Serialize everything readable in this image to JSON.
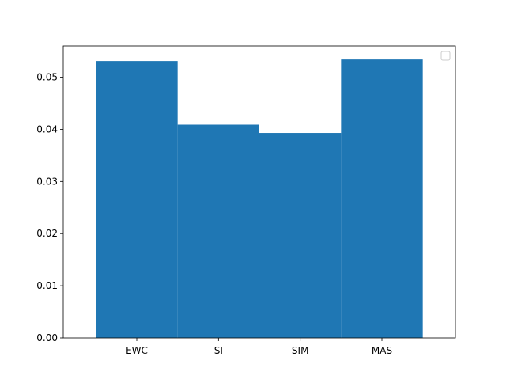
{
  "chart_data": {
    "type": "bar",
    "title": "",
    "xlabel": "",
    "ylabel": "",
    "categories": [
      "EWC",
      "SI",
      "SIM",
      "MAS"
    ],
    "values": [
      0.0531,
      0.0409,
      0.0393,
      0.0534
    ],
    "ylim": [
      0,
      0.056
    ],
    "yticks": [
      0.0,
      0.01,
      0.02,
      0.03,
      0.04,
      0.05
    ],
    "ytick_labels": [
      "0.00",
      "0.01",
      "0.02",
      "0.03",
      "0.04",
      "0.05"
    ],
    "bar_color": "#1f77b4",
    "grid": false,
    "legend": {
      "placement": "top-right",
      "entries": []
    }
  }
}
